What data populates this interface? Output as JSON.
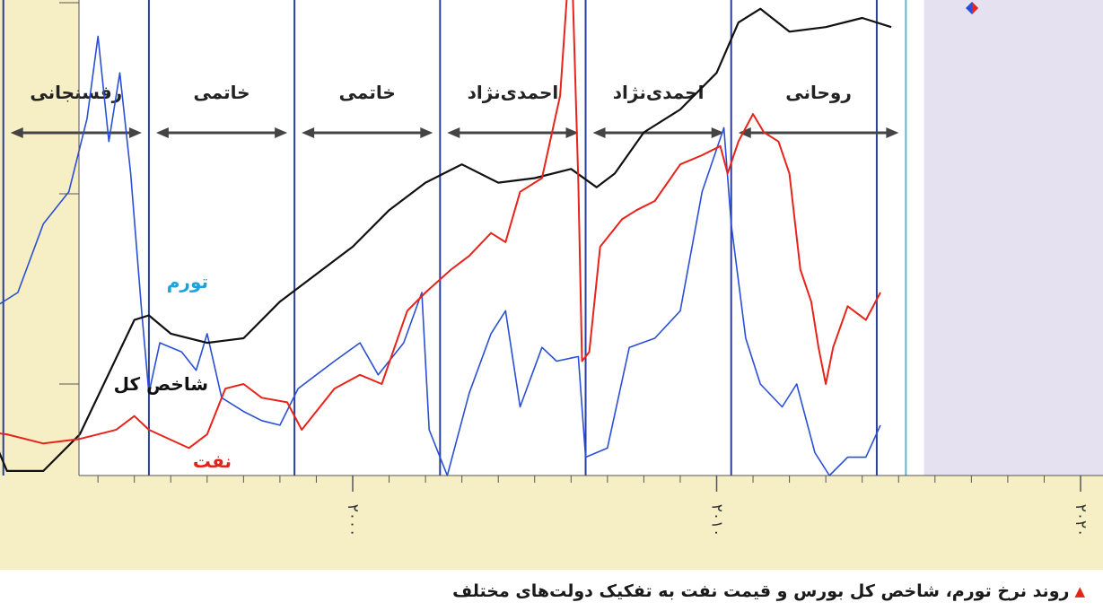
{
  "caption": {
    "marker": "▲",
    "text": "روند نرخ تورم، شاخص کل بورس و قیمت نفت به تفکیک دولت‌های مختلف"
  },
  "colors": {
    "background": "#f6efc5",
    "future_shade": "#e6e1f1",
    "inflation": "#2a4fd6",
    "index": "#111111",
    "oil": "#e8231b",
    "divider": "#2a3f9a",
    "label_inflation": "#1aa3e0",
    "label_oil": "#e2231a"
  },
  "chart_data": {
    "type": "line",
    "title": "",
    "x_range": [
      1989.5,
      2021
    ],
    "y_range": [
      0,
      100
    ],
    "x_ticks": [
      {
        "value": 2000,
        "label": "۲۰۰۰"
      },
      {
        "value": 2010,
        "label": "۲۰۱۰"
      },
      {
        "value": 2020,
        "label": "۲۰۲۰"
      }
    ],
    "dividers": [
      1990.4,
      1994.4,
      1998.4,
      2002.4,
      2006.4,
      2010.4,
      2014.4,
      2015.2
    ],
    "future_start": 2015.7,
    "governments": [
      {
        "name": "رفسنجانی",
        "start": 1990.4,
        "end": 1994.4
      },
      {
        "name": "خاتمی",
        "start": 1994.4,
        "end": 1998.4
      },
      {
        "name": "خاتمی",
        "start": 1998.4,
        "end": 2002.4
      },
      {
        "name": "احمدی‌نژاد",
        "start": 2002.4,
        "end": 2006.4
      },
      {
        "name": "احمدی‌نژاد",
        "start": 2006.4,
        "end": 2010.4
      },
      {
        "name": "روحانی",
        "start": 2010.4,
        "end": 2015.2
      }
    ],
    "series": [
      {
        "name": "تورم",
        "color": "#2a4fd6",
        "points": [
          [
            1989.5,
            53
          ],
          [
            1990.2,
            37
          ],
          [
            1990.8,
            40
          ],
          [
            1991.5,
            55
          ],
          [
            1992.2,
            62
          ],
          [
            1992.7,
            78
          ],
          [
            1993,
            96
          ],
          [
            1993.3,
            73
          ],
          [
            1993.6,
            88
          ],
          [
            1993.9,
            66
          ],
          [
            1994.2,
            36
          ],
          [
            1994.4,
            18
          ],
          [
            1994.7,
            29
          ],
          [
            1995.3,
            27
          ],
          [
            1995.7,
            23
          ],
          [
            1996,
            31
          ],
          [
            1996.4,
            17
          ],
          [
            1997,
            14
          ],
          [
            1997.5,
            12
          ],
          [
            1998,
            11
          ],
          [
            1998.5,
            19
          ],
          [
            1999,
            22
          ],
          [
            1999.5,
            25
          ],
          [
            2000.2,
            29
          ],
          [
            2000.7,
            22
          ],
          [
            2001.4,
            29
          ],
          [
            2001.9,
            40
          ],
          [
            2002.1,
            10
          ],
          [
            2002.6,
            0
          ],
          [
            2003.2,
            18
          ],
          [
            2003.8,
            31
          ],
          [
            2004.2,
            36
          ],
          [
            2004.6,
            15
          ],
          [
            2005.2,
            28
          ],
          [
            2005.6,
            25
          ],
          [
            2006.2,
            26
          ],
          [
            2006.4,
            4
          ],
          [
            2007,
            6
          ],
          [
            2007.6,
            28
          ],
          [
            2008.3,
            30
          ],
          [
            2009,
            36
          ],
          [
            2009.6,
            62
          ],
          [
            2010.2,
            76
          ],
          [
            2010.4,
            55
          ],
          [
            2010.8,
            30
          ],
          [
            2011.2,
            20
          ],
          [
            2011.8,
            15
          ],
          [
            2012.2,
            20
          ],
          [
            2012.7,
            5
          ],
          [
            2013.1,
            0
          ],
          [
            2013.6,
            4
          ],
          [
            2014.1,
            4
          ],
          [
            2014.5,
            11
          ]
        ]
      },
      {
        "name": "شاخص کل",
        "color": "#111111",
        "points": [
          [
            1989.5,
            20
          ],
          [
            1990.5,
            1
          ],
          [
            1991.5,
            1
          ],
          [
            1992.5,
            9
          ],
          [
            1993.4,
            24
          ],
          [
            1994,
            34
          ],
          [
            1994.4,
            35
          ],
          [
            1995,
            31
          ],
          [
            1996,
            29
          ],
          [
            1997,
            30
          ],
          [
            1998,
            38
          ],
          [
            1999,
            44
          ],
          [
            2000,
            50
          ],
          [
            2001,
            58
          ],
          [
            2002,
            64
          ],
          [
            2003,
            68
          ],
          [
            2004,
            64
          ],
          [
            2005,
            65
          ],
          [
            2006,
            67
          ],
          [
            2006.7,
            63
          ],
          [
            2007.2,
            66
          ],
          [
            2008,
            75
          ],
          [
            2009,
            80
          ],
          [
            2010,
            88
          ],
          [
            2010.6,
            99
          ],
          [
            2011.2,
            102
          ],
          [
            2012,
            97
          ],
          [
            2013,
            98
          ],
          [
            2014,
            100
          ],
          [
            2014.8,
            98
          ]
        ]
      },
      {
        "name": "نفت",
        "color": "#e8231b",
        "points": [
          [
            1989.5,
            10
          ],
          [
            1990.5,
            9
          ],
          [
            1991.5,
            7
          ],
          [
            1992.5,
            8
          ],
          [
            1993.5,
            10
          ],
          [
            1994,
            13
          ],
          [
            1994.4,
            10
          ],
          [
            1995.5,
            6
          ],
          [
            1996,
            9
          ],
          [
            1996.5,
            19
          ],
          [
            1997,
            20
          ],
          [
            1997.5,
            17
          ],
          [
            1998.2,
            16
          ],
          [
            1998.6,
            10
          ],
          [
            1999,
            14
          ],
          [
            1999.5,
            19
          ],
          [
            2000.2,
            22
          ],
          [
            2000.8,
            20
          ],
          [
            2001.5,
            36
          ],
          [
            2002,
            40
          ],
          [
            2002.7,
            45
          ],
          [
            2003.2,
            48
          ],
          [
            2003.8,
            53
          ],
          [
            2004.2,
            51
          ],
          [
            2004.6,
            62
          ],
          [
            2005.2,
            65
          ],
          [
            2005.7,
            83
          ],
          [
            2006,
            118
          ],
          [
            2006.2,
            64
          ],
          [
            2006.3,
            25
          ],
          [
            2006.5,
            27
          ],
          [
            2006.8,
            50
          ],
          [
            2007.4,
            56
          ],
          [
            2007.8,
            58
          ],
          [
            2008.3,
            60
          ],
          [
            2009,
            68
          ],
          [
            2009.6,
            70
          ],
          [
            2010.1,
            72
          ],
          [
            2010.3,
            66
          ],
          [
            2010.6,
            73
          ],
          [
            2011,
            79
          ],
          [
            2011.3,
            75
          ],
          [
            2011.7,
            73
          ],
          [
            2012,
            66
          ],
          [
            2012.3,
            45
          ],
          [
            2012.6,
            38
          ],
          [
            2012.8,
            28
          ],
          [
            2013,
            20
          ],
          [
            2013.2,
            28
          ],
          [
            2013.6,
            37
          ],
          [
            2014.1,
            34
          ],
          [
            2014.5,
            40
          ]
        ]
      }
    ],
    "labels": [
      {
        "series": "تورم",
        "text": "تورم"
      },
      {
        "series": "شاخص کل",
        "text": "شاخص کل"
      },
      {
        "series": "نفت",
        "text": "نفت"
      }
    ]
  }
}
